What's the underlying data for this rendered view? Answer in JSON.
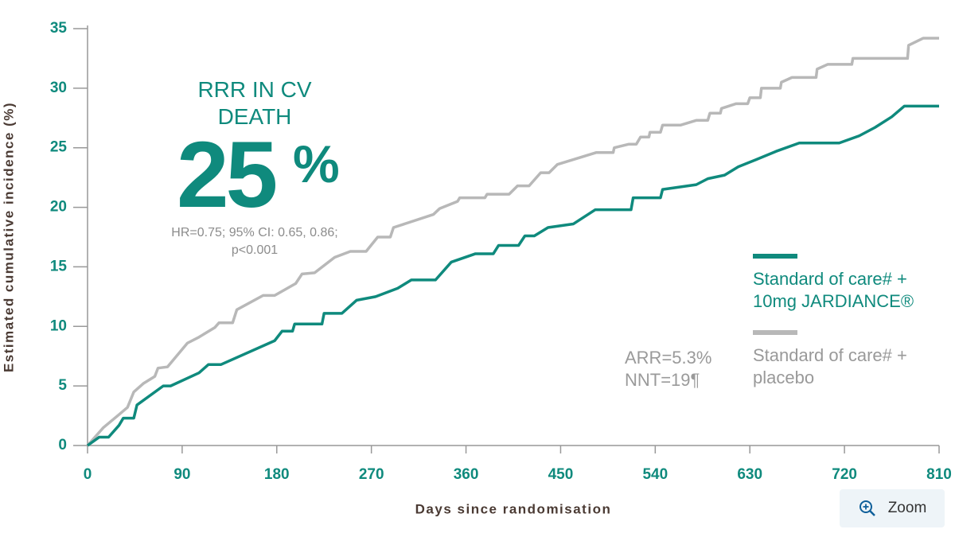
{
  "chart_data": {
    "type": "line",
    "x_label": "Days since randomisation",
    "y_label": "Estimated cumulative incidence (%)",
    "xlim": [
      0,
      810
    ],
    "xticks": [
      0,
      90,
      180,
      270,
      360,
      450,
      540,
      630,
      720,
      810
    ],
    "ylim": [
      0,
      35
    ],
    "yticks": [
      0,
      5,
      10,
      15,
      20,
      25,
      30,
      35
    ],
    "grid": false,
    "legend": "right",
    "annotations": {
      "title": "RRR IN CV DEATH",
      "big": "25",
      "unit": "%",
      "hr": "HR=0.75; 95% CI: 0.65, 0.86;",
      "p": "p<0.001",
      "arr": "ARR=5.3%",
      "nnt": "NNT=19¶"
    },
    "series": [
      {
        "name": "Standard of care# + 10mg JARDIANCE®",
        "color": "#0f8a7d",
        "x": [
          0,
          11,
          20,
          30,
          34,
          44,
          47,
          72,
          79,
          106,
          115,
          127,
          178,
          185,
          195,
          197,
          223,
          225,
          242,
          256,
          274,
          295,
          308,
          331,
          346,
          369,
          386,
          391,
          410,
          416,
          425,
          438,
          462,
          483,
          500,
          517,
          519,
          545,
          547,
          579,
          590,
          606,
          619,
          636,
          655,
          677,
          715,
          734,
          749,
          765,
          777,
          810
        ],
        "values": [
          0,
          0.7,
          0.7,
          1.7,
          2.3,
          2.3,
          3.4,
          5.0,
          5.0,
          6.1,
          6.8,
          6.8,
          8.8,
          9.6,
          9.6,
          10.2,
          10.2,
          11.1,
          11.1,
          12.2,
          12.5,
          13.2,
          13.9,
          13.9,
          15.4,
          16.1,
          16.1,
          16.8,
          16.8,
          17.6,
          17.6,
          18.3,
          18.6,
          19.8,
          19.8,
          19.8,
          20.8,
          20.8,
          21.5,
          21.9,
          22.4,
          22.7,
          23.4,
          24.0,
          24.7,
          25.4,
          25.4,
          26.0,
          26.7,
          27.6,
          28.5,
          28.5
        ]
      },
      {
        "name": "Standard of care# + placebo",
        "color": "#b8b8b8",
        "x": [
          0,
          15,
          30,
          38,
          44,
          53,
          64,
          67,
          76,
          95,
          106,
          121,
          125,
          138,
          142,
          167,
          178,
          198,
          204,
          216,
          235,
          250,
          265,
          276,
          288,
          291,
          329,
          335,
          352,
          354,
          378,
          380,
          401,
          409,
          420,
          431,
          439,
          447,
          484,
          500,
          501,
          515,
          522,
          526,
          534,
          535,
          545,
          547,
          564,
          579,
          590,
          592,
          602,
          603,
          617,
          628,
          630,
          640,
          641,
          659,
          660,
          670,
          693,
          694,
          704,
          727,
          728,
          780,
          781,
          795,
          810
        ],
        "values": [
          0,
          1.5,
          2.6,
          3.2,
          4.5,
          5.2,
          5.8,
          6.5,
          6.6,
          8.6,
          9.1,
          9.9,
          10.3,
          10.3,
          11.4,
          12.6,
          12.6,
          13.6,
          14.4,
          14.5,
          15.8,
          16.3,
          16.3,
          17.5,
          17.5,
          18.3,
          19.4,
          19.9,
          20.5,
          20.8,
          20.8,
          21.1,
          21.1,
          21.8,
          21.8,
          22.9,
          22.9,
          23.6,
          24.6,
          24.6,
          25.0,
          25.3,
          25.3,
          25.9,
          25.9,
          26.3,
          26.3,
          26.9,
          26.9,
          27.3,
          27.3,
          27.9,
          27.9,
          28.3,
          28.7,
          28.7,
          29.2,
          29.2,
          30.0,
          30.0,
          30.5,
          30.9,
          30.9,
          31.6,
          32.0,
          32.0,
          32.5,
          32.5,
          33.6,
          34.2,
          34.2
        ]
      }
    ]
  },
  "controls": {
    "zoom": "Zoom"
  }
}
